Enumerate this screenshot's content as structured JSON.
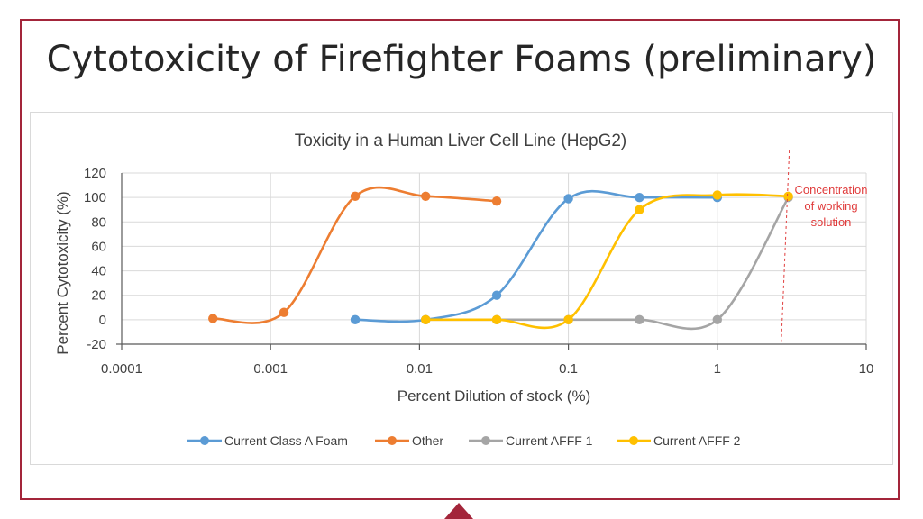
{
  "slide": {
    "title": "Cytotoxicity of Firefighter Foams (preliminary)"
  },
  "colors": {
    "frame": "#a3253a",
    "annotation": "#e03c3c"
  },
  "chart_data": {
    "type": "line",
    "title": "Toxicity in a Human Liver Cell Line (HepG2)",
    "xlabel": "Percent Dilution of stock (%)",
    "ylabel": "Percent Cytotoxicity (%)",
    "x_scale": "log",
    "xlim": [
      0.0001,
      10
    ],
    "ylim": [
      -20,
      120
    ],
    "x_ticks": [
      "0.0001",
      "0.001",
      "0.01",
      "0.1",
      "1",
      "10"
    ],
    "y_ticks": [
      "-20",
      "0",
      "20",
      "40",
      "60",
      "80",
      "100",
      "120"
    ],
    "grid": true,
    "smooth": true,
    "legend_position": "bottom",
    "series": [
      {
        "name": "Current Class A Foam",
        "color": "#5b9bd5",
        "x": [
          0.0037,
          0.011,
          0.033,
          0.1,
          0.3,
          1
        ],
        "y": [
          0,
          0,
          20,
          99,
          100,
          100
        ]
      },
      {
        "name": "Other",
        "color": "#ed7d31",
        "x": [
          0.00041,
          0.00123,
          0.0037,
          0.011,
          0.033
        ],
        "y": [
          1,
          6,
          101,
          101,
          97
        ]
      },
      {
        "name": "Current AFFF 1",
        "color": "#a5a5a5",
        "x": [
          0.011,
          0.033,
          0.1,
          0.3,
          1,
          3
        ],
        "y": [
          0,
          0,
          0,
          0,
          0,
          100
        ]
      },
      {
        "name": "Current AFFF 2",
        "color": "#ffc000",
        "x": [
          0.011,
          0.033,
          0.1,
          0.3,
          1,
          3
        ],
        "y": [
          0,
          0,
          0,
          90,
          102,
          101
        ]
      }
    ],
    "annotations": [
      {
        "text_lines": [
          "Concentration",
          "of working",
          "solution"
        ],
        "x": 2.8
      }
    ]
  }
}
